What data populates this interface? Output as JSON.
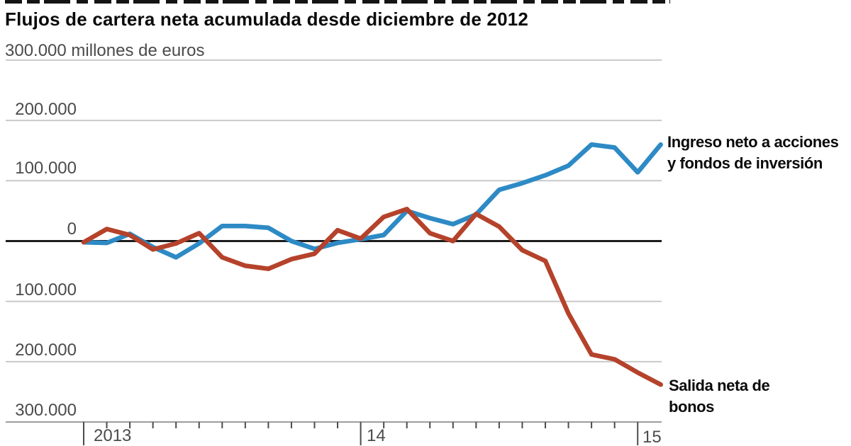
{
  "header": {
    "title": "Flujos de cartera neta acumulada desde diciembre de 2012"
  },
  "legend": {
    "equities_line1": "Ingreso neto a acciones",
    "equities_line2": "y fondos de inversión",
    "bonds_line1": "Salida neta de",
    "bonds_line2": "bonos"
  },
  "chart_data": {
    "type": "line",
    "title": "Flujos de cartera neta acumulada desde diciembre de 2012",
    "unit": "millones de euros",
    "ylim": [
      -300000,
      300000
    ],
    "grid": true,
    "y_axis": {
      "tick_labels": [
        "300.000 millones de euros",
        "200.000",
        "100.000",
        "0",
        "100.000",
        "200.000",
        "300.000"
      ],
      "tick_values": [
        300000,
        200000,
        100000,
        0,
        -100000,
        -200000,
        -300000
      ]
    },
    "x_axis": {
      "tick_labels": [
        "2013",
        "14",
        "15"
      ],
      "minor_tick_interval": "monthly",
      "start": "diciembre 2012"
    },
    "series": [
      {
        "name": "Ingreso neto a acciones y fondos de inversión",
        "color": "#2d8ac5",
        "values": [
          -2000,
          -3000,
          12000,
          -10000,
          -27000,
          -4000,
          25000,
          25000,
          22000,
          0,
          -13000,
          -3000,
          3000,
          10000,
          50000,
          38000,
          28000,
          44000,
          85000,
          96000,
          109000,
          125000,
          160000,
          155000,
          114000,
          160000
        ]
      },
      {
        "name": "Salida neta de bonos",
        "color": "#b5422b",
        "values": [
          -2000,
          20000,
          10000,
          -14000,
          -4000,
          13000,
          -27000,
          -41000,
          -46000,
          -30000,
          -21000,
          18000,
          4000,
          40000,
          53000,
          13000,
          0,
          45000,
          24000,
          -15000,
          -33000,
          -120000,
          -188000,
          -196000,
          -218000,
          -238000
        ]
      }
    ]
  }
}
